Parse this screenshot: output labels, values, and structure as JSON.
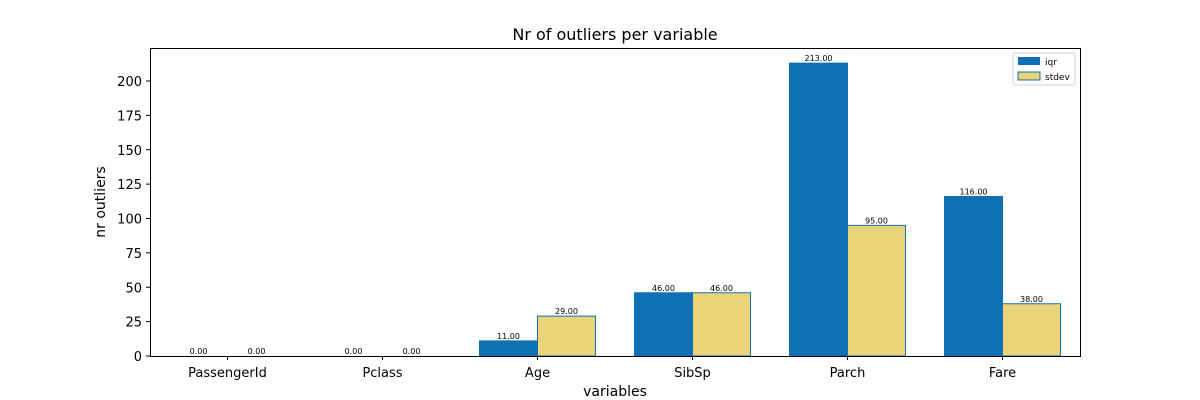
{
  "chart_data": {
    "type": "bar",
    "title": "Nr of outliers per variable",
    "xlabel": "variables",
    "ylabel": "nr outliers",
    "categories": [
      "PassengerId",
      "Pclass",
      "Age",
      "SibSp",
      "Parch",
      "Fare"
    ],
    "series": [
      {
        "name": "iqr",
        "values": [
          0,
          0,
          11,
          46,
          213,
          116
        ],
        "color": "#1070b4",
        "edge": "#1070b4"
      },
      {
        "name": "stdev",
        "values": [
          0,
          0,
          29,
          46,
          95,
          38
        ],
        "color": "#e9d479",
        "edge": "#1070b4"
      }
    ],
    "data_labels": [
      [
        "0.00",
        "0.00",
        "11.00",
        "46.00",
        "213.00",
        "116.00"
      ],
      [
        "0.00",
        "0.00",
        "29.00",
        "46.00",
        "95.00",
        "38.00"
      ]
    ],
    "yticks": [
      0,
      25,
      50,
      75,
      100,
      125,
      150,
      175,
      200
    ],
    "ylim": [
      0,
      224
    ],
    "grid": false,
    "legend_position": "top-right"
  }
}
